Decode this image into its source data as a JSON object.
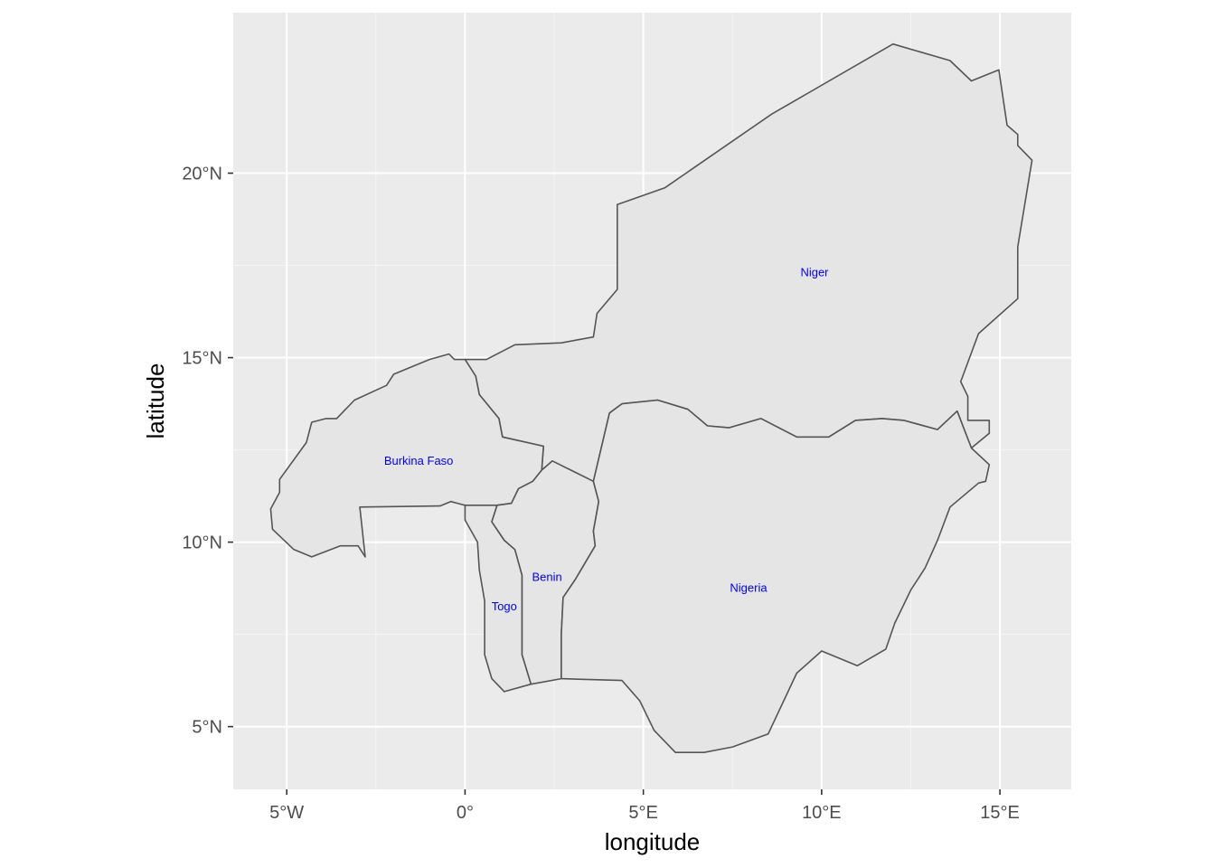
{
  "chart_data": {
    "type": "map",
    "xlabel": "longitude",
    "ylabel": "latitude",
    "xlim": [
      -6.5,
      17.0
    ],
    "ylim": [
      3.3,
      24.35
    ],
    "xticks": [
      {
        "value": -5,
        "label": "5°W"
      },
      {
        "value": 0,
        "label": "0°"
      },
      {
        "value": 5,
        "label": "5°E"
      },
      {
        "value": 10,
        "label": "10°E"
      },
      {
        "value": 15,
        "label": "15°E"
      }
    ],
    "yticks": [
      {
        "value": 5,
        "label": "5°N"
      },
      {
        "value": 10,
        "label": "10°N"
      },
      {
        "value": 15,
        "label": "15°N"
      },
      {
        "value": 20,
        "label": "20°N"
      }
    ],
    "colors": {
      "panel_background": "#ebebeb",
      "country_fill": "#e5e5e5",
      "country_border": "#555555",
      "label_color": "#0000ff"
    },
    "countries": [
      {
        "name": "Niger",
        "label_position": [
          9.8,
          17.3
        ],
        "border": [
          [
            0,
            14.95
          ],
          [
            0.6,
            14.95
          ],
          [
            1.4,
            15.35
          ],
          [
            2.7,
            15.4
          ],
          [
            3.6,
            15.56
          ],
          [
            3.7,
            16.2
          ],
          [
            4.27,
            16.85
          ],
          [
            4.27,
            19.15
          ],
          [
            5.6,
            19.6
          ],
          [
            8.6,
            21.6
          ],
          [
            12.0,
            23.5
          ],
          [
            13.6,
            23.05
          ],
          [
            14.2,
            22.5
          ],
          [
            14.97,
            22.8
          ],
          [
            15.2,
            21.3
          ],
          [
            15.5,
            21.05
          ],
          [
            15.5,
            20.75
          ],
          [
            15.9,
            20.35
          ],
          [
            15.5,
            18.0
          ],
          [
            15.5,
            16.6
          ],
          [
            14.4,
            15.65
          ],
          [
            13.9,
            14.35
          ],
          [
            14.1,
            13.95
          ],
          [
            14.1,
            13.3
          ],
          [
            14.7,
            13.3
          ],
          [
            14.7,
            12.95
          ],
          [
            14.2,
            12.55
          ],
          [
            13.8,
            13.55
          ],
          [
            13.25,
            13.05
          ],
          [
            12.3,
            13.3
          ],
          [
            11.7,
            13.35
          ],
          [
            10.95,
            13.3
          ],
          [
            10.2,
            12.85
          ],
          [
            9.3,
            12.85
          ],
          [
            8.3,
            13.35
          ],
          [
            7.4,
            13.1
          ],
          [
            6.8,
            13.15
          ],
          [
            6.25,
            13.6
          ],
          [
            5.4,
            13.85
          ],
          [
            4.4,
            13.75
          ],
          [
            4.05,
            13.5
          ],
          [
            3.6,
            11.65
          ],
          [
            3.5,
            11.25
          ],
          [
            2.45,
            12.2
          ],
          [
            2.15,
            11.95
          ],
          [
            2.2,
            12.6
          ],
          [
            1.05,
            12.85
          ],
          [
            0.95,
            13.35
          ],
          [
            0.4,
            14.0
          ],
          [
            0.3,
            14.5
          ],
          [
            0,
            14.95
          ]
        ]
      },
      {
        "name": "Burkina Faso",
        "label_position": [
          -1.3,
          12.2
        ],
        "border": [
          [
            -2.8,
            9.6
          ],
          [
            -3.0,
            9.9
          ],
          [
            -3.5,
            9.9
          ],
          [
            -4.3,
            9.6
          ],
          [
            -4.8,
            9.8
          ],
          [
            -5.4,
            10.35
          ],
          [
            -5.45,
            10.9
          ],
          [
            -5.2,
            11.35
          ],
          [
            -5.2,
            11.7
          ],
          [
            -4.45,
            12.7
          ],
          [
            -4.3,
            13.25
          ],
          [
            -3.9,
            13.35
          ],
          [
            -3.6,
            13.35
          ],
          [
            -3.1,
            13.85
          ],
          [
            -2.2,
            14.25
          ],
          [
            -2.0,
            14.55
          ],
          [
            -1.0,
            14.95
          ],
          [
            -0.45,
            15.1
          ],
          [
            -0.3,
            14.95
          ],
          [
            0,
            14.95
          ],
          [
            0.3,
            14.5
          ],
          [
            0.4,
            14.0
          ],
          [
            0.95,
            13.35
          ],
          [
            1.05,
            12.85
          ],
          [
            2.2,
            12.6
          ],
          [
            2.15,
            11.95
          ],
          [
            1.9,
            11.65
          ],
          [
            1.5,
            11.45
          ],
          [
            1.3,
            11.05
          ],
          [
            0.9,
            11.0
          ],
          [
            0,
            11.0
          ],
          [
            -0.4,
            11.1
          ],
          [
            -0.7,
            10.98
          ],
          [
            -2.95,
            10.95
          ],
          [
            -2.8,
            9.6
          ]
        ]
      },
      {
        "name": "Togo",
        "label_position": [
          1.1,
          8.25
        ],
        "border": [
          [
            0,
            11.0
          ],
          [
            0.9,
            11.0
          ],
          [
            0.75,
            10.55
          ],
          [
            1.1,
            10.05
          ],
          [
            1.4,
            9.8
          ],
          [
            1.6,
            9.1
          ],
          [
            1.6,
            8.4
          ],
          [
            1.6,
            6.95
          ],
          [
            1.85,
            6.15
          ],
          [
            1.1,
            5.95
          ],
          [
            0.75,
            6.3
          ],
          [
            0.55,
            6.95
          ],
          [
            0.55,
            8.4
          ],
          [
            0.4,
            9.25
          ],
          [
            0.35,
            10.0
          ],
          [
            0,
            10.6
          ],
          [
            0,
            11.0
          ]
        ]
      },
      {
        "name": "Benin",
        "label_position": [
          2.3,
          9.05
        ],
        "border": [
          [
            0.9,
            11.0
          ],
          [
            1.3,
            11.05
          ],
          [
            1.5,
            11.45
          ],
          [
            1.9,
            11.65
          ],
          [
            2.15,
            11.95
          ],
          [
            2.45,
            12.2
          ],
          [
            3.6,
            11.65
          ],
          [
            3.75,
            11.1
          ],
          [
            3.6,
            10.3
          ],
          [
            3.65,
            9.9
          ],
          [
            3.1,
            9.0
          ],
          [
            2.75,
            8.5
          ],
          [
            2.7,
            7.5
          ],
          [
            2.7,
            6.3
          ],
          [
            1.85,
            6.15
          ],
          [
            1.6,
            6.95
          ],
          [
            1.6,
            8.4
          ],
          [
            1.6,
            9.1
          ],
          [
            1.4,
            9.8
          ],
          [
            1.1,
            10.05
          ],
          [
            0.75,
            10.55
          ],
          [
            0.9,
            11.0
          ]
        ]
      },
      {
        "name": "Nigeria",
        "label_position": [
          7.95,
          8.75
        ],
        "border": [
          [
            2.7,
            6.3
          ],
          [
            4.4,
            6.25
          ],
          [
            4.9,
            5.7
          ],
          [
            5.3,
            4.9
          ],
          [
            5.9,
            4.3
          ],
          [
            6.7,
            4.3
          ],
          [
            7.5,
            4.45
          ],
          [
            8.5,
            4.8
          ],
          [
            9.3,
            6.45
          ],
          [
            10.0,
            7.05
          ],
          [
            11.0,
            6.65
          ],
          [
            11.8,
            7.1
          ],
          [
            12.05,
            7.8
          ],
          [
            12.5,
            8.7
          ],
          [
            12.9,
            9.3
          ],
          [
            13.25,
            10.05
          ],
          [
            13.6,
            10.95
          ],
          [
            14.4,
            11.6
          ],
          [
            14.6,
            11.65
          ],
          [
            14.7,
            12.1
          ],
          [
            14.2,
            12.55
          ],
          [
            13.8,
            13.55
          ],
          [
            13.25,
            13.05
          ],
          [
            12.3,
            13.3
          ],
          [
            11.7,
            13.35
          ],
          [
            10.95,
            13.3
          ],
          [
            10.2,
            12.85
          ],
          [
            9.3,
            12.85
          ],
          [
            8.3,
            13.35
          ],
          [
            7.4,
            13.1
          ],
          [
            6.8,
            13.15
          ],
          [
            6.25,
            13.6
          ],
          [
            5.4,
            13.85
          ],
          [
            4.4,
            13.75
          ],
          [
            4.05,
            13.5
          ],
          [
            3.6,
            11.65
          ],
          [
            3.75,
            11.1
          ],
          [
            3.6,
            10.3
          ],
          [
            3.65,
            9.9
          ],
          [
            3.1,
            9.0
          ],
          [
            2.75,
            8.5
          ],
          [
            2.7,
            7.5
          ],
          [
            2.7,
            6.3
          ]
        ]
      }
    ]
  }
}
